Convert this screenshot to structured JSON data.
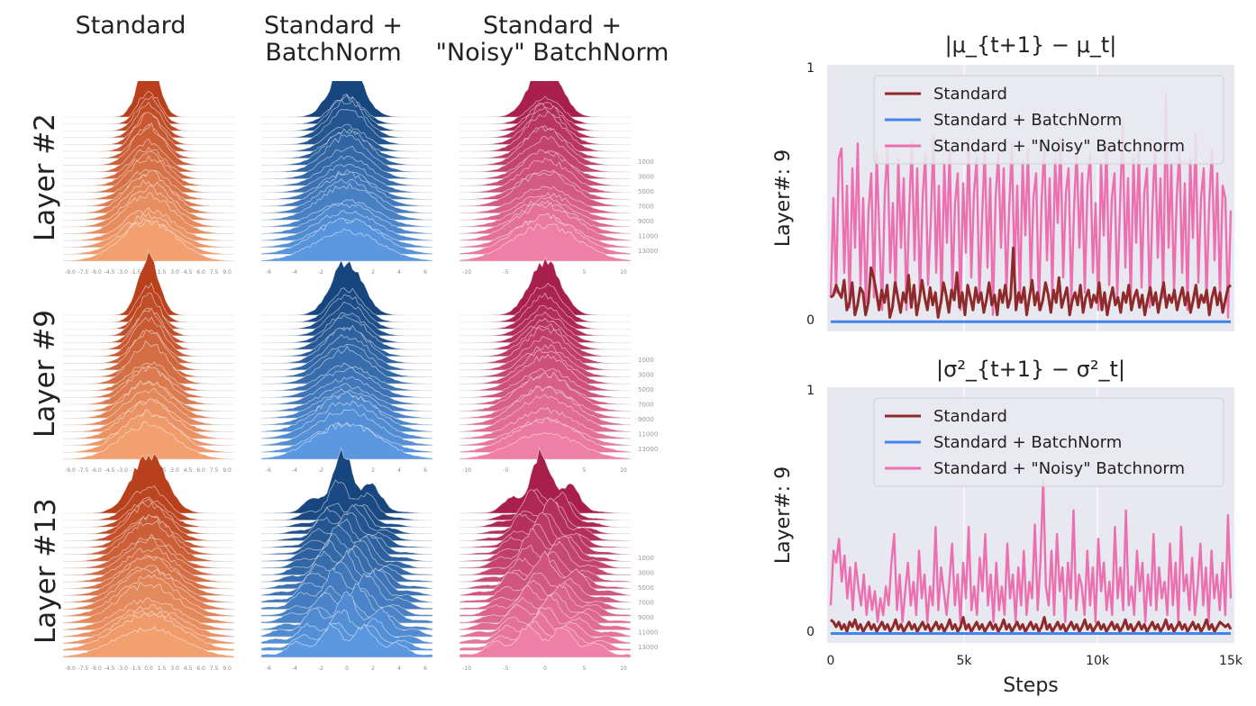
{
  "columns": [
    "Standard",
    "Standard +\nBatchNorm",
    "Standard +\n\"Noisy\" BatchNorm"
  ],
  "rows": [
    "Layer #2",
    "Layer #9",
    "Layer #13"
  ],
  "ridge_steps": [
    "1000",
    "3000",
    "5000",
    "7000",
    "9000",
    "11000",
    "13000"
  ],
  "ridge_axis": {
    "layer2_standard": [
      "-9.0",
      "-7.5",
      "-6.0",
      "-4.5",
      "-3.0",
      "-1.5",
      "0.0",
      "1.5",
      "3.0",
      "4.5",
      "6.0",
      "7.5",
      "9.0"
    ],
    "layer2_bn": [
      "-6",
      "-4",
      "-2",
      "0",
      "2",
      "4",
      "6"
    ],
    "layer2_noisy": [
      "-10",
      "-5",
      "0",
      "5",
      "10"
    ]
  },
  "colors": {
    "standard": "#d9682e",
    "batchnorm": "#2f6bb3",
    "noisy": "#d9447b",
    "line_standard": "#8e2a2a",
    "line_bn": "#3f86e8",
    "line_noisy": "#ec6fb0",
    "plot_bg": "#e8e8f0"
  },
  "chart_data": [
    {
      "type": "line",
      "title": "|μ_{t+1} − μ_t|",
      "ylabel": "Layer#: 9",
      "xlabel": "",
      "ylim": [
        0,
        1
      ],
      "yticks": [
        "0",
        "1"
      ],
      "xlim": [
        0,
        15000
      ],
      "legend": [
        "Standard",
        "Standard + BatchNorm",
        "Standard + \"Noisy\" Batchnorm"
      ],
      "series": [
        {
          "name": "Standard",
          "values": [
            0.1,
            0.11,
            0.15,
            0.12,
            0.1,
            0.17,
            0.05,
            0.08,
            0.16,
            0.03,
            0.07,
            0.14,
            0.12,
            0.03,
            0.08,
            0.22,
            0.18,
            0.12,
            0.05,
            0.13,
            0.08,
            0.15,
            0.02,
            0.06,
            0.16,
            0.1,
            0.04,
            0.12,
            0.08,
            0.19,
            0.06,
            0.15,
            0.03,
            0.09,
            0.17,
            0.1,
            0.05,
            0.14,
            0.07,
            0.12,
            0.02,
            0.08,
            0.16,
            0.11,
            0.04,
            0.13,
            0.09,
            0.2,
            0.06,
            0.12,
            0.03,
            0.15,
            0.1,
            0.05,
            0.14,
            0.08,
            0.12,
            0.04,
            0.09,
            0.16,
            0.07,
            0.11,
            0.03,
            0.13,
            0.08,
            0.15,
            0.06,
            0.1,
            0.3,
            0.05,
            0.12,
            0.08,
            0.14,
            0.03,
            0.1,
            0.17,
            0.07,
            0.12,
            0.05,
            0.09,
            0.16,
            0.11,
            0.04,
            0.13,
            0.08,
            0.18,
            0.06,
            0.1,
            0.14,
            0.03,
            0.09,
            0.12,
            0.07,
            0.15,
            0.04,
            0.1,
            0.13,
            0.06,
            0.11,
            0.08,
            0.16,
            0.05,
            0.12,
            0.03,
            0.09,
            0.14,
            0.07,
            0.1,
            0.04,
            0.12,
            0.08,
            0.15,
            0.05,
            0.1,
            0.13,
            0.06,
            0.11,
            0.03,
            0.09,
            0.14,
            0.07,
            0.12,
            0.04,
            0.1,
            0.16,
            0.06,
            0.11,
            0.08,
            0.13,
            0.05,
            0.1,
            0.14,
            0.07,
            0.12,
            0.04,
            0.09,
            0.15,
            0.06,
            0.11,
            0.08,
            0.13,
            0.03,
            0.1,
            0.14,
            0.07,
            0.12,
            0.04,
            0.09,
            0.14,
            0.15
          ]
        },
        {
          "name": "Standard + BatchNorm",
          "values": [
            0.003,
            0.003,
            0.003,
            0.003,
            0.003,
            0.003,
            0.003,
            0.003,
            0.003,
            0.003,
            0.003,
            0.003,
            0.003,
            0.003,
            0.003,
            0.003,
            0.003,
            0.003,
            0.003,
            0.003
          ]
        },
        {
          "name": "Standard + \"Noisy\" Batchnorm",
          "values": [
            0.1,
            0.5,
            0.12,
            0.66,
            0.7,
            0.2,
            0.55,
            0.06,
            0.62,
            0.3,
            0.72,
            0.15,
            0.5,
            0.08,
            0.45,
            0.6,
            0.1,
            0.68,
            0.35,
            0.05,
            0.52,
            0.7,
            0.2,
            0.48,
            0.12,
            0.66,
            0.3,
            0.58,
            0.05,
            0.44,
            0.72,
            0.25,
            0.62,
            0.1,
            0.5,
            0.68,
            0.15,
            0.4,
            0.75,
            0.2,
            0.55,
            0.08,
            0.64,
            0.32,
            0.7,
            0.12,
            0.48,
            0.6,
            0.05,
            0.56,
            0.28,
            0.74,
            0.18,
            0.52,
            0.66,
            0.1,
            0.42,
            0.7,
            0.22,
            0.58,
            0.03,
            0.5,
            0.68,
            0.3,
            0.62,
            0.12,
            0.45,
            0.72,
            0.2,
            0.55,
            0.08,
            0.65,
            0.35,
            0.7,
            0.15,
            0.5,
            0.6,
            0.05,
            0.48,
            0.72,
            0.25,
            0.58,
            0.1,
            0.66,
            0.4,
            0.74,
            0.18,
            0.52,
            0.62,
            0.08,
            0.45,
            0.7,
            0.3,
            0.6,
            0.12,
            0.55,
            0.68,
            0.2,
            0.48,
            0.05,
            0.64,
            0.35,
            0.72,
            0.15,
            0.5,
            0.6,
            0.1,
            0.46,
            0.8,
            0.22,
            0.58,
            0.08,
            0.66,
            0.32,
            0.7,
            0.14,
            0.52,
            0.62,
            0.06,
            0.45,
            0.72,
            0.26,
            0.58,
            0.1,
            0.92,
            0.3,
            0.64,
            0.12,
            0.5,
            0.7,
            0.2,
            0.56,
            0.05,
            0.66,
            0.34,
            0.76,
            0.16,
            0.5,
            0.62,
            0.08,
            0.47,
            0.7,
            0.25,
            0.6,
            0.1,
            0.55,
            0.5,
            0.02,
            0.45
          ]
        }
      ]
    },
    {
      "type": "line",
      "title": "|σ²_{t+1} − σ²_t|",
      "ylabel": "Layer#: 9",
      "xlabel": "Steps",
      "ylim": [
        0,
        1
      ],
      "yticks": [
        "0",
        "1"
      ],
      "xlim": [
        0,
        15000
      ],
      "xticks": [
        "0",
        "5k",
        "10k",
        "15k"
      ],
      "legend": [
        "Standard",
        "Standard + BatchNorm",
        "Standard + \"Noisy\" Batchnorm"
      ],
      "series": [
        {
          "name": "Standard",
          "values": [
            0.06,
            0.05,
            0.03,
            0.05,
            0.02,
            0.04,
            0.01,
            0.05,
            0.03,
            0.06,
            0.02,
            0.04,
            0.01,
            0.03,
            0.05,
            0.02,
            0.04,
            0.01,
            0.03,
            0.05,
            0.02,
            0.04,
            0.01,
            0.03,
            0.06,
            0.02,
            0.04,
            0.01,
            0.03,
            0.05,
            0.02,
            0.04,
            0.01,
            0.03,
            0.05,
            0.02,
            0.04,
            0.01,
            0.03,
            0.05,
            0.02,
            0.04,
            0.01,
            0.03,
            0.06,
            0.02,
            0.04,
            0.01,
            0.03,
            0.07,
            0.02,
            0.04,
            0.01,
            0.03,
            0.05,
            0.02,
            0.04,
            0.01,
            0.03,
            0.05,
            0.02,
            0.04,
            0.01,
            0.03,
            0.06,
            0.02,
            0.04,
            0.01,
            0.03,
            0.05,
            0.02,
            0.04,
            0.01,
            0.03,
            0.05,
            0.02,
            0.04,
            0.01,
            0.03,
            0.07,
            0.02,
            0.04,
            0.01,
            0.03,
            0.05,
            0.02,
            0.04,
            0.01,
            0.03,
            0.05,
            0.02,
            0.04,
            0.01,
            0.03,
            0.06,
            0.02,
            0.04,
            0.01,
            0.03,
            0.05,
            0.02,
            0.04,
            0.01,
            0.03,
            0.05,
            0.02,
            0.04,
            0.01,
            0.03,
            0.06,
            0.02,
            0.04,
            0.01,
            0.03,
            0.05,
            0.02,
            0.04,
            0.01,
            0.03,
            0.05,
            0.02,
            0.04,
            0.01,
            0.03,
            0.06,
            0.02,
            0.04,
            0.01,
            0.03,
            0.05,
            0.02,
            0.04,
            0.01,
            0.03,
            0.05,
            0.02,
            0.04,
            0.01,
            0.03,
            0.06,
            0.02,
            0.04,
            0.01,
            0.03,
            0.05,
            0.04,
            0.03,
            0.04,
            0.02
          ]
        },
        {
          "name": "Standard + BatchNorm",
          "values": [
            0.002,
            0.002,
            0.002,
            0.002,
            0.002,
            0.002,
            0.002,
            0.002,
            0.002,
            0.002,
            0.002,
            0.002,
            0.002,
            0.002,
            0.002,
            0.002,
            0.002,
            0.002,
            0.002,
            0.002
          ]
        },
        {
          "name": "Standard + \"Noisy\" Batchnorm",
          "values": [
            0.12,
            0.35,
            0.3,
            0.4,
            0.22,
            0.33,
            0.15,
            0.28,
            0.1,
            0.3,
            0.2,
            0.12,
            0.25,
            0.08,
            0.2,
            0.1,
            0.18,
            0.05,
            0.15,
            0.08,
            0.2,
            0.12,
            0.3,
            0.42,
            0.1,
            0.25,
            0.05,
            0.18,
            0.3,
            0.12,
            0.22,
            0.08,
            0.35,
            0.15,
            0.25,
            0.05,
            0.2,
            0.12,
            0.45,
            0.1,
            0.28,
            0.18,
            0.08,
            0.22,
            0.38,
            0.12,
            0.25,
            0.05,
            0.3,
            0.15,
            0.45,
            0.1,
            0.2,
            0.08,
            0.32,
            0.18,
            0.42,
            0.12,
            0.25,
            0.05,
            0.3,
            0.1,
            0.2,
            0.08,
            0.38,
            0.15,
            0.25,
            0.05,
            0.28,
            0.12,
            0.35,
            0.08,
            0.22,
            0.15,
            0.46,
            0.1,
            0.3,
            0.65,
            0.2,
            0.12,
            0.35,
            0.08,
            0.42,
            0.18,
            0.28,
            0.05,
            0.3,
            0.15,
            0.52,
            0.1,
            0.25,
            0.2,
            0.08,
            0.35,
            0.12,
            0.28,
            0.05,
            0.4,
            0.18,
            0.3,
            0.1,
            0.22,
            0.08,
            0.45,
            0.15,
            0.28,
            0.1,
            0.52,
            0.12,
            0.2,
            0.08,
            0.35,
            0.18,
            0.3,
            0.05,
            0.25,
            0.12,
            0.42,
            0.1,
            0.28,
            0.15,
            0.22,
            0.08,
            0.38,
            0.12,
            0.3,
            0.05,
            0.45,
            0.18,
            0.25,
            0.1,
            0.32,
            0.08,
            0.2,
            0.38,
            0.12,
            0.28,
            0.05,
            0.35,
            0.15,
            0.25,
            0.1,
            0.3,
            0.08,
            0.5,
            0.15
          ]
        }
      ]
    }
  ]
}
